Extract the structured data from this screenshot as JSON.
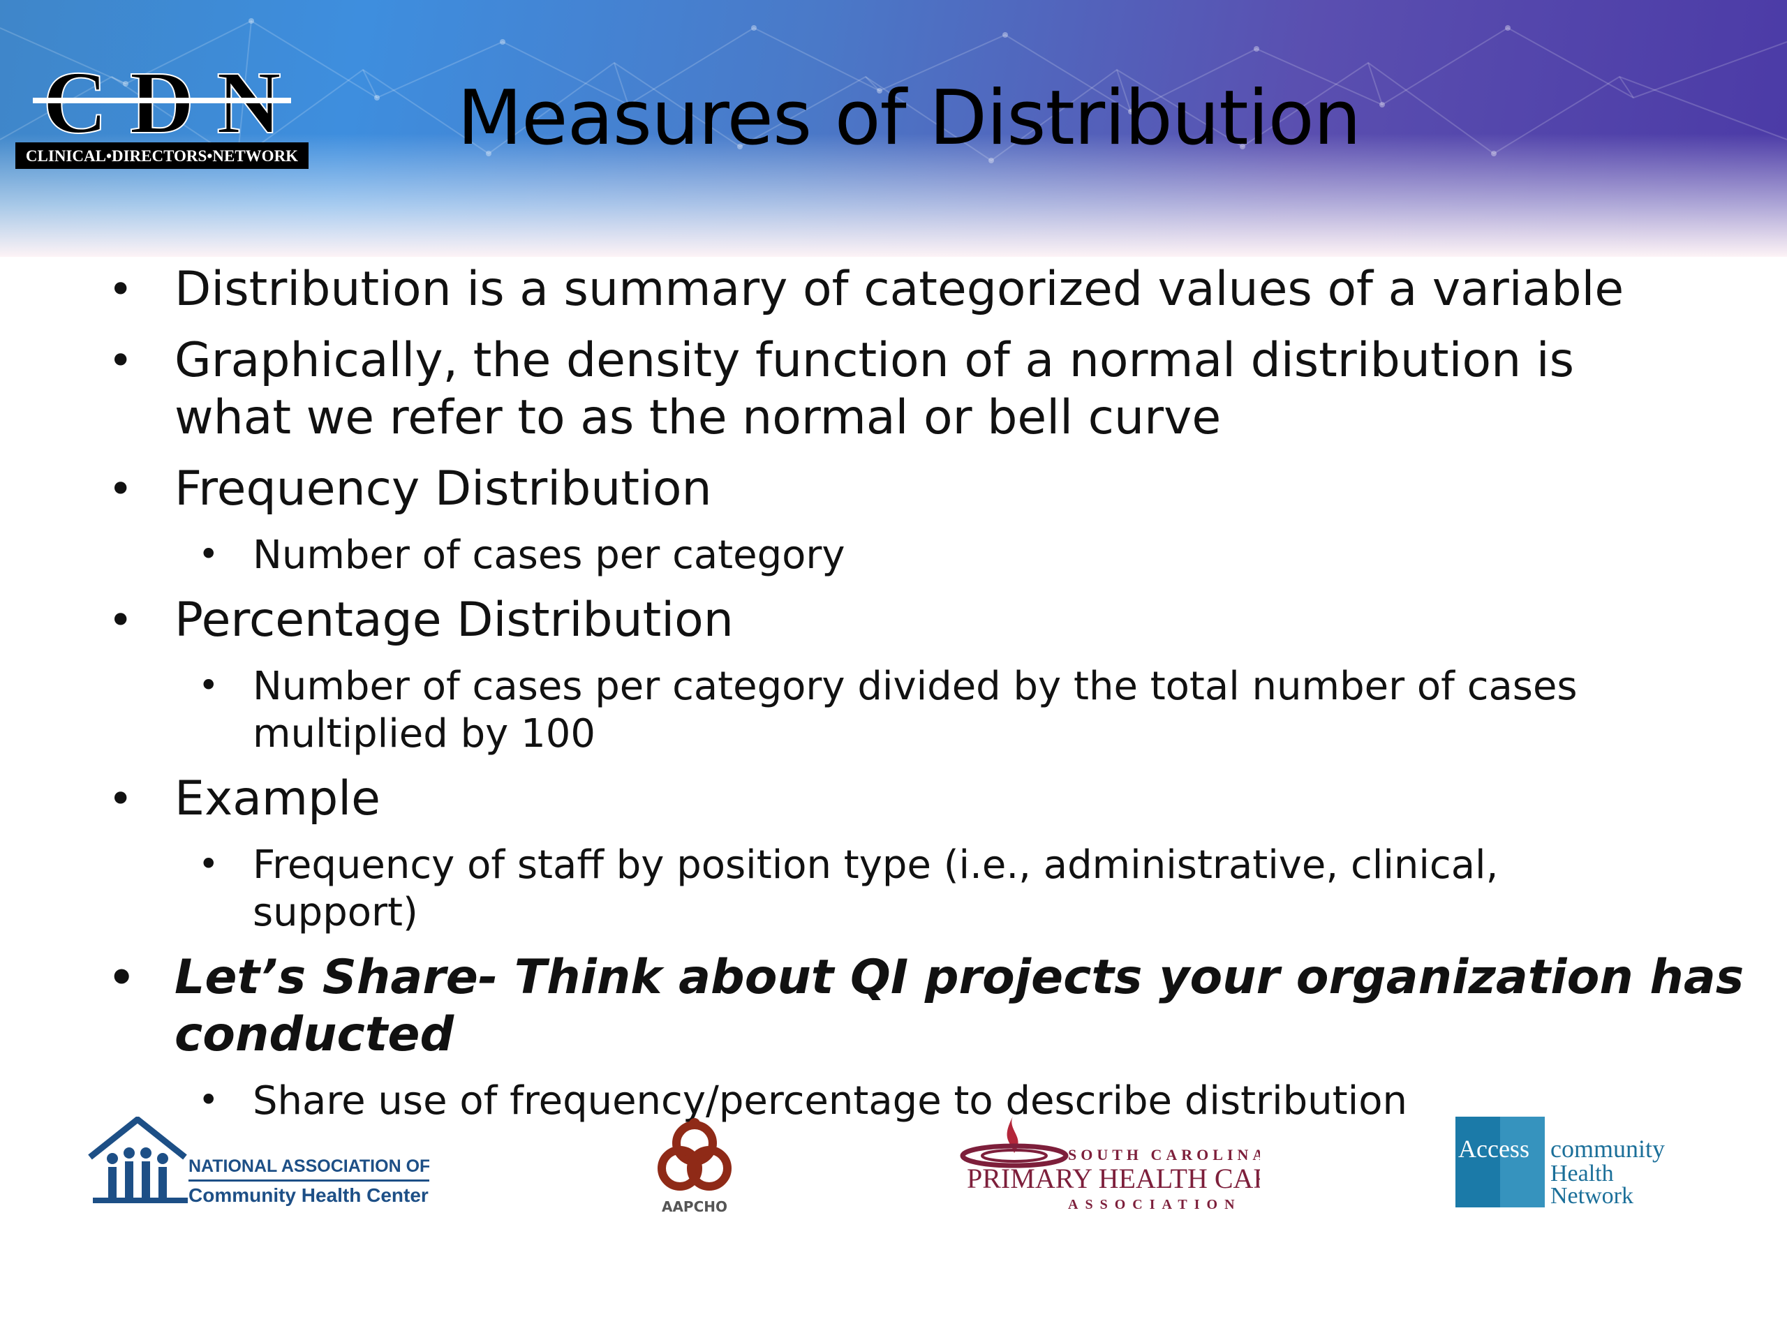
{
  "slide": {
    "title": "Measures of Distribution",
    "header_logo": {
      "name": "cdn-logo",
      "letters": "C D N",
      "tagline": "CLINICAL•DIRECTORS•NETWORK"
    }
  },
  "bullets": {
    "b1": "Distribution is a summary of categorized values of a variable",
    "b2_line1": "Graphically, the density function of a normal distribution is",
    "b2_line2": "what we refer to as the normal or bell curve",
    "b3": "Frequency Distribution",
    "b3_sub": "Number of cases per category",
    "b4": "Percentage Distribution",
    "b4_sub_line1": "Number of cases per category divided by the total number of cases",
    "b4_sub_line2": "multiplied by 100",
    "b5": "Example",
    "b5_sub_line1": "Frequency of staff by position type (i.e., administrative, clinical,",
    "b5_sub_line2": "support)",
    "b6_line1": "Let’s Share- Think about QI projects your organization has",
    "b6_line2": "conducted",
    "b6_sub": "Share use of frequency/percentage to describe distribution",
    "bullet_char": "•"
  },
  "footer_logos": {
    "nachc": {
      "line1": "NATIONAL ASSOCIATION OF",
      "line2": "Community Health Centers"
    },
    "aapcho": {
      "label": "AAPCHO"
    },
    "scphca": {
      "top": "SOUTH CAROLINA",
      "middle": "PRIMARY HEALTH CARE",
      "bottom": "ASSOCIATION"
    },
    "access": {
      "box": "Access",
      "line1": "community",
      "line2": "Health",
      "line3": "Network"
    }
  },
  "colors": {
    "nachc_blue": "#1d4f86",
    "aapcho_red": "#8f2a17",
    "scphca_maroon": "#7d1f3b",
    "access_teal": "#1b7aa8"
  }
}
